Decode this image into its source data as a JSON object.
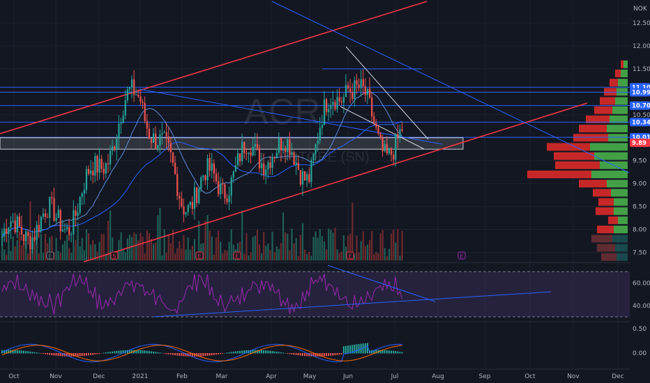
{
  "chart_data": [
    {
      "type": "candlestick",
      "title": "",
      "watermark": {
        "symbol": "ACR",
        "name": "ACTORE (SN)"
      },
      "currency": "NOK",
      "x_ticks": [
        "Oct",
        "Nov",
        "Dec",
        "2021",
        "Feb",
        "Mar",
        "Apr",
        "May",
        "Jun",
        "Jul",
        "Aug",
        "Sep",
        "Oct",
        "Nov",
        "Dec"
      ],
      "y_ticks": [
        "12.50",
        "12.00",
        "11.50",
        "11.00",
        "10.50",
        "10.00",
        "9.50",
        "9.00",
        "8.50",
        "8.00",
        "7.50"
      ],
      "price_tags": [
        {
          "value": "11.10",
          "color": "#2962ff"
        },
        {
          "value": "10.99",
          "color": "#2962ff"
        },
        {
          "value": "10.70",
          "color": "#2962ff"
        },
        {
          "value": "10.34",
          "color": "#2962ff"
        },
        {
          "value": "10.01",
          "color": "#2962ff"
        },
        {
          "value": "9.89",
          "color": "#f23645"
        }
      ],
      "levels": [
        11.1,
        10.99,
        10.7,
        10.34,
        10.01
      ],
      "last_price": 9.89,
      "events": [
        {
          "month": "Nov",
          "label": "E",
          "color": "#787b86"
        },
        {
          "month": "Dec",
          "label": "S",
          "color": "#f23645"
        },
        {
          "month": "Feb",
          "label": "E",
          "color": "#f23645"
        },
        {
          "month": "Mar",
          "label": "E",
          "color": "#f23645"
        },
        {
          "month": "Jun",
          "label": "E",
          "color": "#f23645"
        },
        {
          "month": "Aug",
          "label": "E",
          "color": "#9c27b0"
        }
      ],
      "monthly_close": [
        {
          "month": "Oct",
          "close": 7.7
        },
        {
          "month": "Nov",
          "close": 8.2
        },
        {
          "month": "Dec",
          "close": 9.4
        },
        {
          "month": "2021",
          "close": 10.8
        },
        {
          "month": "Feb",
          "close": 9.0
        },
        {
          "month": "Mar",
          "close": 8.8
        },
        {
          "month": "Apr",
          "close": 10.1
        },
        {
          "month": "May",
          "close": 9.3
        },
        {
          "month": "Jun",
          "close": 11.3
        },
        {
          "month": "Jul",
          "close": 9.89
        }
      ],
      "colors": {
        "up": "#26a69a",
        "down": "#ef5350",
        "ma_fast": "#5b8fd9",
        "ma_slow": "#2962ff",
        "trend_red": "#f23645",
        "trend_blue": "#2962ff"
      }
    },
    {
      "type": "line",
      "indicator": "RSI",
      "y_ticks": [
        "60.00",
        "40.00"
      ],
      "band": [
        30,
        70
      ],
      "color": "#9c27b0"
    },
    {
      "type": "bar",
      "indicator": "MACD",
      "y_ticks": [
        "0.50",
        "0.00"
      ],
      "colors": {
        "macd": "#2962ff",
        "signal": "#ff6d00",
        "hist_up": "#26a69a",
        "hist_down": "#ef5350"
      }
    }
  ]
}
